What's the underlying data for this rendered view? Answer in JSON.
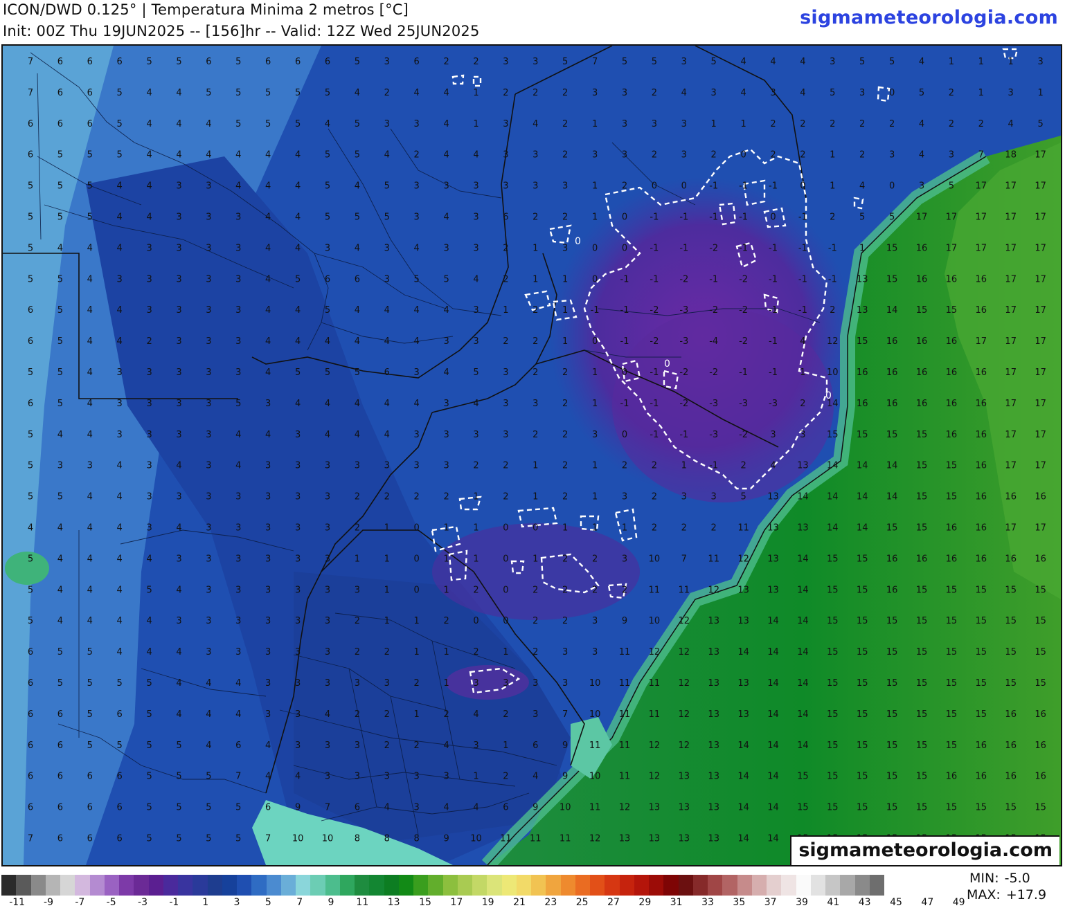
{
  "header": {
    "title_line1": "ICON/DWD 0.125° | Temperatura Minima 2 metros [°C]",
    "title_line2": "Init: 00Z Thu 19JUN2025 -- [156]hr -- Valid: 12Z Wed 25JUN2025",
    "brand": "sigmameteorologia.com"
  },
  "watermark": "sigmameteorologia.com",
  "stats": {
    "min_label": "MIN:",
    "min_value": "-5.0",
    "max_label": "MAX:",
    "max_value": "+17.9"
  },
  "contour": {
    "value_label": "0",
    "color": "#ffffff"
  },
  "colorbar": {
    "labels": [
      "-11",
      "-9",
      "-7",
      "-5",
      "-3",
      "-1",
      "1",
      "3",
      "5",
      "7",
      "9",
      "11",
      "13",
      "15",
      "17",
      "19",
      "21",
      "23",
      "25",
      "27",
      "29",
      "31",
      "33",
      "35",
      "37",
      "39",
      "41",
      "43",
      "45",
      "47",
      "49"
    ],
    "colors": [
      "#2b2b2b",
      "#5a5a5a",
      "#8a8a8a",
      "#b5b5b5",
      "#d6d6d6",
      "#d3b8de",
      "#b48bd1",
      "#9a62c2",
      "#7d3aa8",
      "#6b2a96",
      "#5b1f91",
      "#4a2a9c",
      "#39349f",
      "#2a3a9a",
      "#1e3d8f",
      "#16419b",
      "#1f4fb1",
      "#2f6cc3",
      "#4b8bd0",
      "#6aaed8",
      "#8ad6da",
      "#6ccdb4",
      "#4cbd8d",
      "#2fa75e",
      "#1e8c3f",
      "#138632",
      "#0d7d22",
      "#128a16",
      "#3a9e1e",
      "#62ae2c",
      "#8cbf3e",
      "#a9cb52",
      "#c3d866",
      "#dbe479",
      "#ede876",
      "#f2da68",
      "#f1c352",
      "#f0a53e",
      "#ee8a2e",
      "#ea6c22",
      "#e25018",
      "#d63712",
      "#c6230d",
      "#b4150a",
      "#9c0c07",
      "#7e0505",
      "#6b1010",
      "#862a2a",
      "#a04646",
      "#b26464",
      "#c68b8b",
      "#d6aeae",
      "#e4cfcf",
      "#efe4e4",
      "#fafafa",
      "#e2e2e2",
      "#c6c6c6",
      "#a8a8a8",
      "#8a8a8a",
      "#6e6e6e"
    ],
    "label_colors": []
  },
  "map": {
    "value_rows": [
      [
        "7",
        "6",
        "6",
        "6",
        "5",
        "5",
        "6",
        "5",
        "6",
        "6",
        "6",
        "5",
        "3",
        "6",
        "2",
        "2",
        "3",
        "3",
        "5",
        "7",
        "5",
        "5",
        "3",
        "5",
        "4",
        "4",
        "4",
        "3",
        "5",
        "5",
        "4",
        "1",
        "1",
        "1",
        "3"
      ],
      [
        "7",
        "6",
        "6",
        "5",
        "4",
        "4",
        "5",
        "5",
        "5",
        "5",
        "5",
        "4",
        "2",
        "4",
        "4",
        "1",
        "2",
        "2",
        "2",
        "3",
        "3",
        "2",
        "4",
        "3",
        "4",
        "3",
        "4",
        "5",
        "3",
        "0",
        "5",
        "2",
        "1",
        "3",
        "1"
      ],
      [
        "6",
        "6",
        "6",
        "5",
        "4",
        "4",
        "4",
        "5",
        "5",
        "5",
        "4",
        "5",
        "3",
        "3",
        "4",
        "1",
        "3",
        "4",
        "2",
        "1",
        "3",
        "3",
        "3",
        "1",
        "1",
        "2",
        "2",
        "2",
        "2",
        "2",
        "4",
        "2",
        "2",
        "4",
        "5"
      ],
      [
        "6",
        "5",
        "5",
        "5",
        "4",
        "4",
        "4",
        "4",
        "4",
        "4",
        "5",
        "5",
        "4",
        "2",
        "4",
        "4",
        "3",
        "3",
        "2",
        "3",
        "3",
        "2",
        "3",
        "2",
        "0",
        "2",
        "2",
        "1",
        "2",
        "3",
        "4",
        "3",
        "7",
        "18",
        "17"
      ],
      [
        "5",
        "5",
        "5",
        "4",
        "4",
        "3",
        "3",
        "4",
        "4",
        "4",
        "5",
        "4",
        "5",
        "3",
        "3",
        "3",
        "3",
        "3",
        "3",
        "1",
        "2",
        "0",
        "0",
        "-1",
        "-1",
        "-1",
        "0",
        "1",
        "4",
        "0",
        "3",
        "5",
        "17",
        "17",
        "17"
      ],
      [
        "5",
        "5",
        "5",
        "4",
        "4",
        "3",
        "3",
        "3",
        "4",
        "4",
        "5",
        "5",
        "5",
        "3",
        "4",
        "3",
        "6",
        "2",
        "2",
        "1",
        "0",
        "-1",
        "-1",
        "-1",
        "-1",
        "0",
        "-1",
        "2",
        "5",
        "5",
        "17",
        "17",
        "17",
        "17",
        "17"
      ],
      [
        "5",
        "4",
        "4",
        "4",
        "3",
        "3",
        "3",
        "3",
        "4",
        "4",
        "3",
        "4",
        "3",
        "4",
        "3",
        "3",
        "2",
        "1",
        "3",
        "0",
        "0",
        "-1",
        "-1",
        "-2",
        "-1",
        "-1",
        "-1",
        "-1",
        "1",
        "15",
        "16",
        "17",
        "17",
        "17",
        "17"
      ],
      [
        "5",
        "5",
        "4",
        "3",
        "3",
        "3",
        "3",
        "3",
        "4",
        "5",
        "6",
        "6",
        "3",
        "5",
        "5",
        "4",
        "2",
        "1",
        "1",
        "0",
        "-1",
        "-1",
        "-2",
        "-1",
        "-2",
        "-1",
        "-1",
        "-1",
        "13",
        "15",
        "16",
        "16",
        "16",
        "17",
        "17"
      ],
      [
        "6",
        "5",
        "4",
        "4",
        "3",
        "3",
        "3",
        "3",
        "4",
        "4",
        "5",
        "4",
        "4",
        "4",
        "4",
        "3",
        "1",
        "2",
        "1",
        "-1",
        "-1",
        "-2",
        "-3",
        "-2",
        "-2",
        "-1",
        "-1",
        "2",
        "13",
        "14",
        "15",
        "15",
        "16",
        "17",
        "17"
      ],
      [
        "6",
        "5",
        "4",
        "4",
        "2",
        "3",
        "3",
        "3",
        "4",
        "4",
        "4",
        "4",
        "4",
        "4",
        "3",
        "3",
        "2",
        "2",
        "1",
        "0",
        "-1",
        "-2",
        "-3",
        "-4",
        "-2",
        "-1",
        "4",
        "12",
        "15",
        "16",
        "16",
        "16",
        "17",
        "17",
        "17"
      ],
      [
        "5",
        "5",
        "4",
        "3",
        "3",
        "3",
        "3",
        "3",
        "4",
        "5",
        "5",
        "5",
        "6",
        "3",
        "4",
        "5",
        "3",
        "2",
        "2",
        "1",
        "0",
        "-1",
        "-2",
        "-2",
        "-1",
        "-1",
        "1",
        "10",
        "16",
        "16",
        "16",
        "16",
        "16",
        "17",
        "17"
      ],
      [
        "6",
        "5",
        "4",
        "3",
        "3",
        "3",
        "3",
        "5",
        "3",
        "4",
        "4",
        "4",
        "4",
        "4",
        "3",
        "4",
        "3",
        "3",
        "2",
        "1",
        "-1",
        "-1",
        "-2",
        "-3",
        "-3",
        "-3",
        "2",
        "14",
        "16",
        "16",
        "16",
        "16",
        "16",
        "17",
        "17"
      ],
      [
        "5",
        "4",
        "4",
        "3",
        "3",
        "3",
        "3",
        "4",
        "4",
        "3",
        "4",
        "4",
        "4",
        "3",
        "3",
        "3",
        "3",
        "2",
        "2",
        "3",
        "0",
        "-1",
        "-1",
        "-3",
        "-2",
        "3",
        "3",
        "15",
        "15",
        "15",
        "15",
        "16",
        "16",
        "17",
        "17"
      ],
      [
        "5",
        "3",
        "3",
        "4",
        "3",
        "4",
        "3",
        "4",
        "3",
        "3",
        "3",
        "3",
        "3",
        "3",
        "3",
        "2",
        "2",
        "1",
        "2",
        "1",
        "2",
        "2",
        "1",
        "-1",
        "2",
        "4",
        "13",
        "14",
        "14",
        "14",
        "15",
        "15",
        "16",
        "17",
        "17"
      ],
      [
        "5",
        "5",
        "4",
        "4",
        "3",
        "3",
        "3",
        "3",
        "3",
        "3",
        "3",
        "2",
        "2",
        "2",
        "2",
        "1",
        "2",
        "1",
        "2",
        "1",
        "3",
        "2",
        "3",
        "3",
        "5",
        "13",
        "14",
        "14",
        "14",
        "14",
        "15",
        "15",
        "16",
        "16",
        "16"
      ],
      [
        "4",
        "4",
        "4",
        "4",
        "3",
        "4",
        "3",
        "3",
        "3",
        "3",
        "3",
        "2",
        "1",
        "0",
        "1",
        "1",
        "0",
        "0",
        "1",
        "1",
        "1",
        "2",
        "2",
        "2",
        "11",
        "13",
        "13",
        "14",
        "14",
        "15",
        "15",
        "16",
        "16",
        "17",
        "17"
      ],
      [
        "5",
        "4",
        "4",
        "4",
        "4",
        "3",
        "3",
        "3",
        "3",
        "3",
        "3",
        "1",
        "1",
        "0",
        "1",
        "1",
        "0",
        "1",
        "2",
        "2",
        "3",
        "10",
        "7",
        "11",
        "12",
        "13",
        "14",
        "15",
        "15",
        "16",
        "16",
        "16",
        "16",
        "16",
        "16"
      ],
      [
        "5",
        "4",
        "4",
        "4",
        "5",
        "4",
        "3",
        "3",
        "3",
        "3",
        "3",
        "3",
        "1",
        "0",
        "1",
        "2",
        "0",
        "2",
        "2",
        "2",
        "2",
        "11",
        "11",
        "12",
        "13",
        "13",
        "14",
        "15",
        "15",
        "16",
        "15",
        "15",
        "15",
        "15",
        "15"
      ],
      [
        "5",
        "4",
        "4",
        "4",
        "4",
        "3",
        "3",
        "3",
        "3",
        "3",
        "3",
        "2",
        "1",
        "1",
        "2",
        "0",
        "0",
        "2",
        "2",
        "3",
        "9",
        "10",
        "12",
        "13",
        "13",
        "14",
        "14",
        "15",
        "15",
        "15",
        "15",
        "15",
        "15",
        "15",
        "15"
      ],
      [
        "6",
        "5",
        "5",
        "4",
        "4",
        "4",
        "3",
        "3",
        "3",
        "3",
        "3",
        "2",
        "2",
        "1",
        "1",
        "2",
        "1",
        "2",
        "3",
        "3",
        "11",
        "12",
        "12",
        "13",
        "14",
        "14",
        "14",
        "15",
        "15",
        "15",
        "15",
        "15",
        "15",
        "15",
        "15"
      ],
      [
        "6",
        "5",
        "5",
        "5",
        "5",
        "4",
        "4",
        "4",
        "3",
        "3",
        "3",
        "3",
        "3",
        "2",
        "1",
        "3",
        "3",
        "3",
        "3",
        "10",
        "11",
        "11",
        "12",
        "13",
        "13",
        "14",
        "14",
        "15",
        "15",
        "15",
        "15",
        "15",
        "15",
        "15",
        "15"
      ],
      [
        "6",
        "6",
        "5",
        "6",
        "5",
        "4",
        "4",
        "4",
        "3",
        "3",
        "4",
        "2",
        "2",
        "1",
        "2",
        "4",
        "2",
        "3",
        "7",
        "10",
        "11",
        "11",
        "12",
        "13",
        "13",
        "14",
        "14",
        "15",
        "15",
        "15",
        "15",
        "15",
        "15",
        "16",
        "16"
      ],
      [
        "6",
        "6",
        "5",
        "5",
        "5",
        "5",
        "4",
        "6",
        "4",
        "3",
        "3",
        "3",
        "2",
        "2",
        "4",
        "3",
        "1",
        "6",
        "9",
        "11",
        "11",
        "12",
        "12",
        "13",
        "14",
        "14",
        "14",
        "15",
        "15",
        "15",
        "15",
        "15",
        "16",
        "16",
        "16"
      ],
      [
        "6",
        "6",
        "6",
        "6",
        "5",
        "5",
        "5",
        "7",
        "4",
        "4",
        "3",
        "3",
        "3",
        "3",
        "3",
        "1",
        "2",
        "4",
        "9",
        "10",
        "11",
        "12",
        "13",
        "13",
        "14",
        "14",
        "15",
        "15",
        "15",
        "15",
        "15",
        "16",
        "16",
        "16",
        "16"
      ],
      [
        "6",
        "6",
        "6",
        "6",
        "5",
        "5",
        "5",
        "5",
        "6",
        "9",
        "7",
        "6",
        "4",
        "3",
        "4",
        "4",
        "6",
        "9",
        "10",
        "11",
        "12",
        "13",
        "13",
        "13",
        "14",
        "14",
        "15",
        "15",
        "15",
        "15",
        "15",
        "15",
        "15",
        "15",
        "15"
      ],
      [
        "7",
        "6",
        "6",
        "6",
        "5",
        "5",
        "5",
        "5",
        "7",
        "10",
        "10",
        "8",
        "8",
        "8",
        "9",
        "10",
        "11",
        "11",
        "11",
        "12",
        "13",
        "13",
        "13",
        "13",
        "14",
        "14",
        "15",
        "15",
        "15",
        "15",
        "15",
        "15",
        "15",
        "15",
        "15"
      ]
    ],
    "zero_labels": [
      "0",
      "0",
      "0"
    ]
  }
}
